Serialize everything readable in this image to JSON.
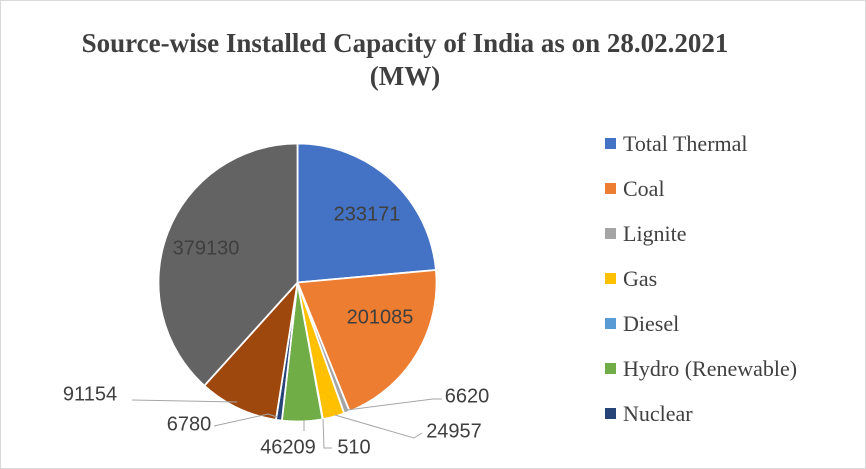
{
  "window": {
    "background": "#ffffff",
    "border_color": "#d9d9d9"
  },
  "chart_data": {
    "type": "pie",
    "title": "Source-wise Installed Capacity of India as on 28.02.2021 (MW)",
    "unit": "MW",
    "start_angle_deg": 0,
    "direction": "clockwise",
    "legend_position": "right",
    "title_color": "#3f3f3f",
    "label_color": "#3f3f3f",
    "legend_text_color": "#404040",
    "leader_line_color": "#A6A6A6",
    "slice_border_color": "#FFFFFF",
    "slices": [
      {
        "name": "Total Thermal",
        "value": 233171,
        "color": "#4472C4",
        "in_legend": true,
        "label_placement": "inside"
      },
      {
        "name": "Coal",
        "value": 201085,
        "color": "#ED7D31",
        "in_legend": true,
        "label_placement": "inside"
      },
      {
        "name": "Lignite",
        "value": 6620,
        "color": "#A5A5A5",
        "in_legend": true,
        "label_placement": "outside"
      },
      {
        "name": "Gas",
        "value": 24957,
        "color": "#FFC000",
        "in_legend": true,
        "label_placement": "outside"
      },
      {
        "name": "Diesel",
        "value": 510,
        "color": "#5B9BD5",
        "in_legend": true,
        "label_placement": "outside"
      },
      {
        "name": "Hydro (Renewable)",
        "value": 46209,
        "color": "#70AD47",
        "in_legend": true,
        "label_placement": "outside"
      },
      {
        "name": "Nuclear",
        "value": 6780,
        "color": "#264478",
        "in_legend": true,
        "label_placement": "outside"
      },
      {
        "name": "",
        "value": 91154,
        "color": "#9E480E",
        "in_legend": false,
        "label_placement": "outside"
      },
      {
        "name": "",
        "value": 379130,
        "color": "#636363",
        "in_legend": false,
        "label_placement": "inside"
      }
    ]
  }
}
